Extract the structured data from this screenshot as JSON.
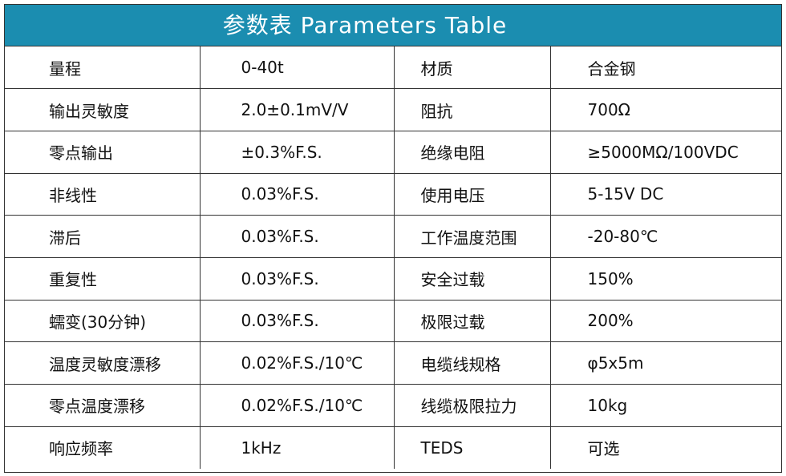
{
  "header": {
    "title": "参数表 Parameters Table"
  },
  "table": {
    "rows": [
      [
        "量程",
        "0-40t",
        "材质",
        "合金钢"
      ],
      [
        "输出灵敏度",
        "2.0±0.1mV/V",
        "阻抗",
        "700Ω"
      ],
      [
        "零点输出",
        "±0.3%F.S.",
        "绝缘电阻",
        "≥5000MΩ/100VDC"
      ],
      [
        "非线性",
        "0.03%F.S.",
        "使用电压",
        "5-15V DC"
      ],
      [
        "滞后",
        "0.03%F.S.",
        "工作温度范围",
        "-20-80℃"
      ],
      [
        "重复性",
        "0.03%F.S.",
        "安全过载",
        "150%"
      ],
      [
        "蠕变(30分钟)",
        "0.03%F.S.",
        "极限过载",
        "200%"
      ],
      [
        "温度灵敏度漂移",
        "0.02%F.S./10℃",
        "电缆线规格",
        "φ5x5m"
      ],
      [
        "零点温度漂移",
        "0.02%F.S./10℃",
        "线缆极限拉力",
        "10kg"
      ],
      [
        "响应频率",
        "1kHz",
        "TEDS",
        "可选"
      ]
    ]
  }
}
